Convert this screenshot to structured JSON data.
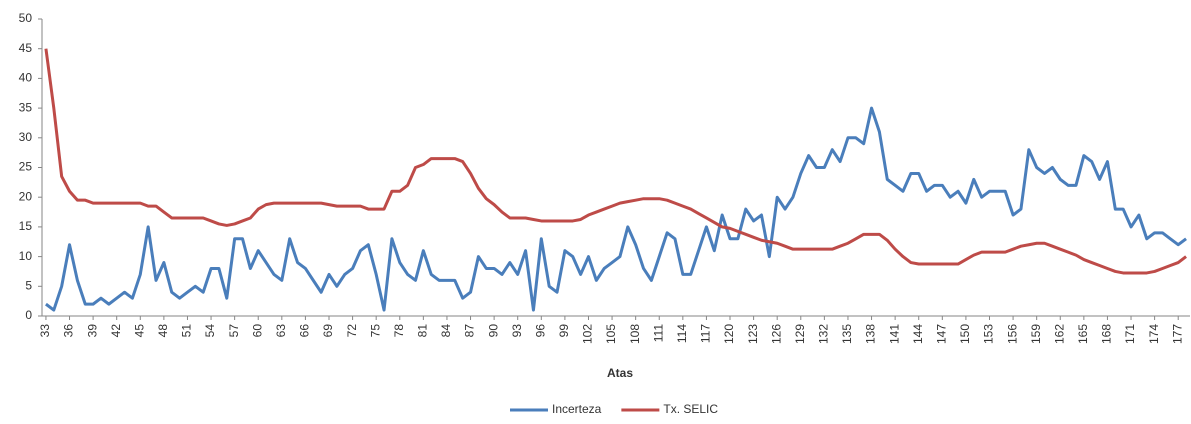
{
  "chart_data": {
    "type": "line",
    "x_label": "Atas",
    "categories": [
      "33",
      null,
      null,
      "36",
      null,
      null,
      "39",
      null,
      null,
      "42",
      null,
      null,
      "45",
      null,
      null,
      "48",
      null,
      null,
      "51",
      null,
      null,
      "54",
      null,
      null,
      "57",
      null,
      null,
      "60",
      null,
      null,
      "63",
      null,
      null,
      "66",
      null,
      null,
      "69",
      null,
      null,
      "72",
      null,
      null,
      "75",
      null,
      null,
      "78",
      null,
      null,
      "81",
      null,
      null,
      "84",
      null,
      null,
      "87",
      null,
      null,
      "90",
      null,
      null,
      "93",
      null,
      null,
      "96",
      null,
      null,
      "99",
      null,
      null,
      "102",
      null,
      null,
      "105",
      null,
      null,
      "108",
      null,
      null,
      "111",
      null,
      null,
      "114",
      null,
      null,
      "117",
      null,
      null,
      "120",
      null,
      null,
      "123",
      null,
      null,
      "126",
      null,
      null,
      "129",
      null,
      null,
      "132",
      null,
      null,
      "135",
      null,
      null,
      "138",
      null,
      null,
      "141",
      null,
      null,
      "144",
      null,
      null,
      "147",
      null,
      null,
      "150",
      null,
      null,
      "153",
      null,
      null,
      "156",
      null,
      null,
      "159",
      null,
      null,
      "162",
      null,
      null,
      "165",
      null,
      null,
      "168",
      null,
      null,
      "171",
      null,
      null,
      "174",
      null,
      null,
      "177",
      null
    ],
    "series": [
      {
        "name": "Incerteza",
        "color": "#4a7ebb",
        "values": [
          2,
          1,
          5,
          12,
          6,
          2,
          2,
          3,
          2,
          3,
          4,
          3,
          7,
          15,
          6,
          9,
          4,
          3,
          4,
          5,
          4,
          8,
          8,
          3,
          13,
          13,
          8,
          11,
          9,
          7,
          6,
          13,
          9,
          8,
          6,
          4,
          7,
          5,
          7,
          8,
          11,
          12,
          7,
          1,
          13,
          9,
          7,
          6,
          11,
          7,
          6,
          6,
          6,
          3,
          4,
          10,
          8,
          8,
          7,
          9,
          7,
          11,
          1,
          13,
          5,
          4,
          11,
          10,
          7,
          10,
          6,
          8,
          9,
          10,
          15,
          12,
          8,
          6,
          10,
          14,
          13,
          7,
          7,
          11,
          15,
          11,
          17,
          13,
          13,
          18,
          16,
          17,
          10,
          20,
          18,
          20,
          24,
          27,
          25,
          25,
          28,
          26,
          30,
          30,
          29,
          35,
          31,
          23,
          22,
          21,
          24,
          24,
          21,
          22,
          22,
          20,
          21,
          19,
          23,
          20,
          21,
          21,
          21,
          17,
          18,
          28,
          25,
          24,
          25,
          23,
          22,
          22,
          27,
          26,
          23,
          26,
          18,
          18,
          15,
          17,
          13,
          14,
          14,
          13,
          12,
          13
        ]
      },
      {
        "name": "Tx. SELIC",
        "color": "#be4b48",
        "values": [
          45,
          35,
          23.5,
          21,
          19.5,
          19.5,
          19,
          19,
          19,
          19,
          19,
          19,
          19,
          18.5,
          18.5,
          17.5,
          16.5,
          16.5,
          16.5,
          16.5,
          16.5,
          16,
          15.5,
          15.25,
          15.5,
          16,
          16.5,
          18,
          18.75,
          19,
          19,
          19,
          19,
          19,
          19,
          19,
          18.75,
          18.5,
          18.5,
          18.5,
          18.5,
          18,
          18,
          18,
          21,
          21,
          22,
          25,
          25.5,
          26.5,
          26.5,
          26.5,
          26.5,
          26,
          24,
          21.5,
          19.75,
          18.75,
          17.5,
          16.5,
          16.5,
          16.5,
          16.25,
          16,
          16,
          16,
          16,
          16,
          16.25,
          17,
          17.5,
          18,
          18.5,
          19,
          19.25,
          19.5,
          19.75,
          19.75,
          19.75,
          19.5,
          19,
          18.5,
          18,
          17.25,
          16.5,
          15.75,
          15,
          14.75,
          14.25,
          13.75,
          13.25,
          12.75,
          12.5,
          12.25,
          11.75,
          11.25,
          11.25,
          11.25,
          11.25,
          11.25,
          11.25,
          11.75,
          12.25,
          13,
          13.75,
          13.75,
          13.75,
          12.75,
          11.25,
          10,
          9,
          8.75,
          8.75,
          8.75,
          8.75,
          8.75,
          8.75,
          9.5,
          10.25,
          10.75,
          10.75,
          10.75,
          10.75,
          11.25,
          11.75,
          12,
          12.25,
          12.25,
          11.75,
          11.25,
          10.75,
          10.25,
          9.5,
          9,
          8.5,
          8,
          7.5,
          7.25,
          7.25,
          7.25,
          7.25,
          7.5,
          8,
          8.5,
          9,
          10
        ]
      }
    ],
    "ylim": [
      0,
      50
    ],
    "yticks": [
      0,
      5,
      10,
      15,
      20,
      25,
      30,
      35,
      40,
      45,
      50
    ],
    "grid": false,
    "legend": "bottom"
  }
}
